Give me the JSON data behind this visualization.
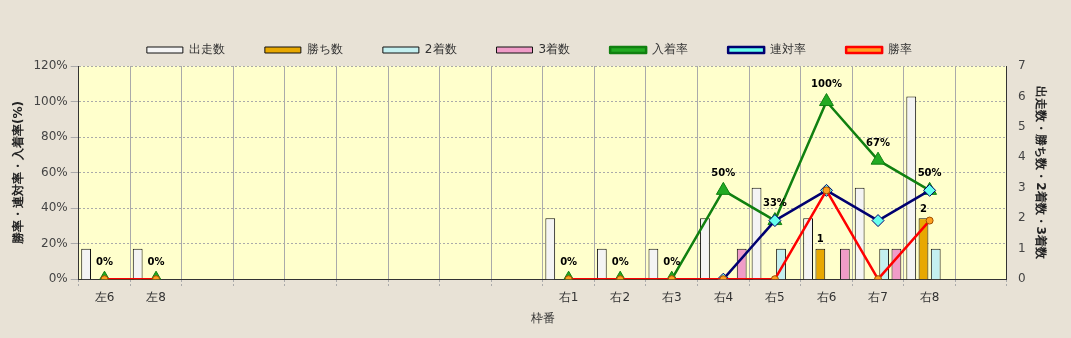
{
  "chart_data": {
    "type": "bar",
    "xlabel": "枠番",
    "ylabel": "勝率・連対率・入着率(%)",
    "y2label": "出走数・勝ち数・2着数・3着数",
    "categories": [
      "左6",
      "左8",
      null,
      null,
      null,
      null,
      null,
      null,
      null,
      "右1",
      "右2",
      "右3",
      "右4",
      "右5",
      "右6",
      "右7",
      "右8",
      null
    ],
    "series": [
      {
        "name": "出走数",
        "axis": "y2",
        "color": "#f4f4f4",
        "values": [
          1,
          1,
          null,
          null,
          null,
          null,
          null,
          null,
          null,
          2,
          1,
          1,
          2,
          3,
          2,
          3,
          6,
          null
        ]
      },
      {
        "name": "勝ち数",
        "axis": "y2",
        "color": "#e8a800",
        "values": [
          0,
          0,
          null,
          null,
          null,
          null,
          null,
          null,
          null,
          0,
          0,
          0,
          0,
          0,
          1,
          0,
          2,
          null
        ],
        "value_labels": [
          null,
          null,
          null,
          null,
          null,
          null,
          null,
          null,
          null,
          null,
          null,
          null,
          null,
          null,
          "1",
          null,
          "2",
          null
        ]
      },
      {
        "name": "2着数",
        "axis": "y2",
        "color": "#c4f0f0",
        "values": [
          0,
          0,
          null,
          null,
          null,
          null,
          null,
          null,
          null,
          0,
          0,
          0,
          0,
          1,
          0,
          1,
          1,
          null
        ]
      },
      {
        "name": "3着数",
        "axis": "y2",
        "color": "#f09cc8",
        "values": [
          0,
          0,
          null,
          null,
          null,
          null,
          null,
          null,
          null,
          0,
          0,
          0,
          1,
          0,
          1,
          1,
          0,
          null
        ]
      },
      {
        "name": "入着率",
        "type": "line",
        "marker": "triangle",
        "color": "#108010",
        "values": [
          0,
          0,
          null,
          null,
          null,
          null,
          null,
          null,
          null,
          0,
          0,
          0,
          50,
          33,
          100,
          67,
          50,
          null
        ],
        "value_labels": [
          "0%",
          "0%",
          null,
          null,
          null,
          null,
          null,
          null,
          null,
          "0%",
          "0%",
          "0%",
          "50%",
          "33%",
          "100%",
          "67%",
          "50%",
          null
        ]
      },
      {
        "name": "連対率",
        "type": "line",
        "marker": "diamond",
        "color": "#000070",
        "values": [
          null,
          null,
          null,
          null,
          null,
          null,
          null,
          null,
          null,
          null,
          null,
          null,
          0,
          33,
          50,
          33,
          50,
          null
        ]
      },
      {
        "name": "勝率",
        "type": "line",
        "marker": "circle",
        "color": "#ff0000",
        "values": [
          0,
          0,
          null,
          null,
          null,
          null,
          null,
          null,
          null,
          0,
          0,
          0,
          0,
          0,
          50,
          0,
          33,
          null
        ]
      }
    ],
    "ylim": [
      0,
      120
    ],
    "yticks": [
      {
        "value": 0,
        "label": "0%"
      },
      {
        "value": 20,
        "label": "20%"
      },
      {
        "value": 40,
        "label": "40%"
      },
      {
        "value": 60,
        "label": "60%"
      },
      {
        "value": 80,
        "label": "80%"
      },
      {
        "value": 100,
        "label": "100%"
      },
      {
        "value": 120,
        "label": "120%"
      }
    ],
    "y2lim": [
      0,
      7
    ],
    "y2ticks": [
      0,
      1,
      2,
      3,
      4,
      5,
      6,
      7
    ],
    "grid": true,
    "legend": "top"
  }
}
